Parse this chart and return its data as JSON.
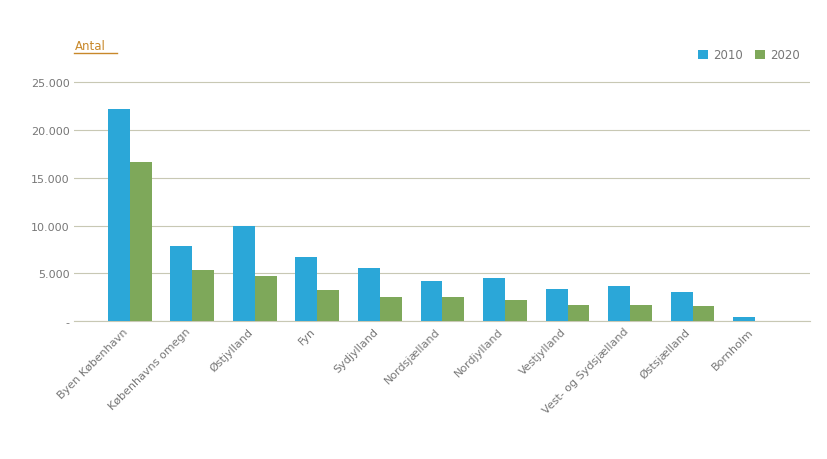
{
  "categories": [
    "Byen København",
    "Københavns omegn",
    "Østjylland",
    "Fyn",
    "Sydjylland",
    "Nordsjælland",
    "Nordjylland",
    "Vestjylland",
    "Vest- og Sydsjælland",
    "Østsjælland",
    "Bornholm"
  ],
  "values_2010": [
    22200,
    7900,
    10000,
    6700,
    5600,
    4200,
    4500,
    3400,
    3700,
    3000,
    400
  ],
  "values_2020": [
    16700,
    5300,
    4700,
    3300,
    2500,
    2500,
    2200,
    1700,
    1700,
    1600,
    0
  ],
  "color_2010": "#2BA7D8",
  "color_2020": "#7EA85A",
  "ylabel": "Antal",
  "ylabel_color": "#C8882A",
  "legend_labels": [
    "2010",
    "2020"
  ],
  "ylim": [
    0,
    27000
  ],
  "yticks": [
    0,
    5000,
    10000,
    15000,
    20000,
    25000
  ],
  "ytick_labels": [
    "-",
    "5.000",
    "10.000",
    "15.000",
    "20.000",
    "25.000"
  ],
  "background_color": "#FFFFFF",
  "grid_color": "#C8C8B4",
  "bar_width": 0.35,
  "tick_fontsize": 8.0,
  "legend_fontsize": 8.5,
  "ylabel_fontsize": 8.5,
  "text_color": "#777777"
}
